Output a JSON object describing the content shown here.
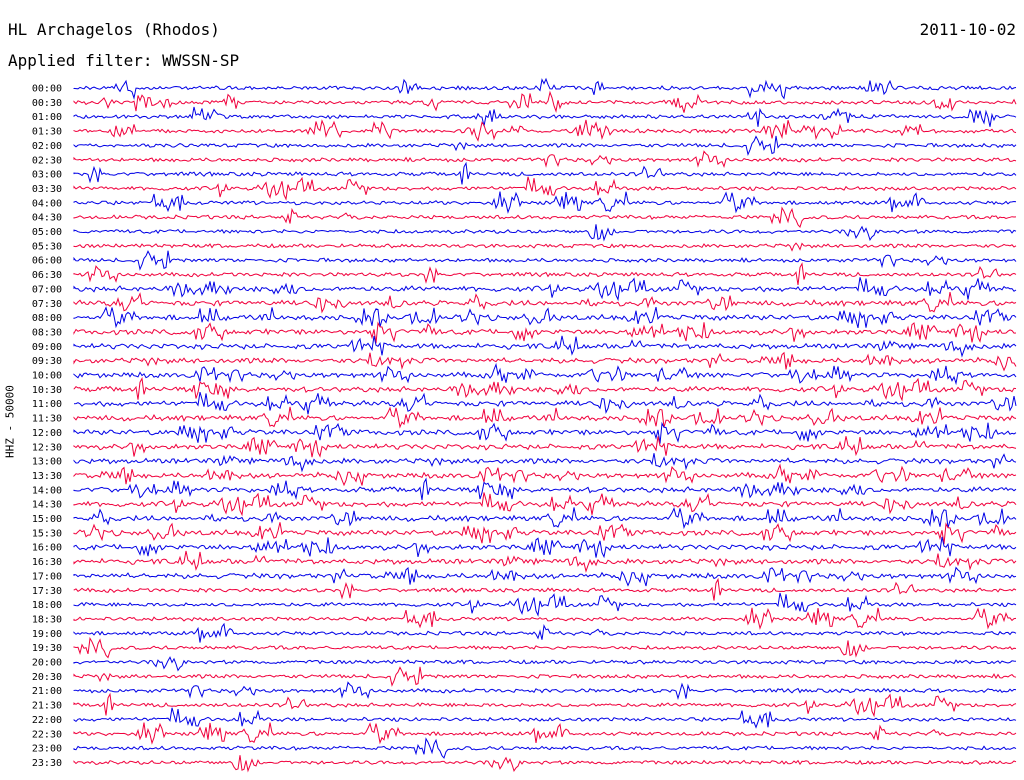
{
  "header": {
    "station": "HL Archagelos (Rhodos)",
    "date": "2011-10-02",
    "filter": "Applied filter: WWSSN-SP"
  },
  "chart_data": {
    "type": "line",
    "description_kind": "helicorder",
    "ylabel": "HHZ - 50000",
    "colors": [
      "#0000e6",
      "#f0003c"
    ],
    "rows": [
      {
        "label": "00:00"
      },
      {
        "label": "00:30"
      },
      {
        "label": "01:00"
      },
      {
        "label": "01:30"
      },
      {
        "label": "02:00"
      },
      {
        "label": "02:30"
      },
      {
        "label": "03:00"
      },
      {
        "label": "03:30"
      },
      {
        "label": "04:00"
      },
      {
        "label": "04:30"
      },
      {
        "label": "05:00"
      },
      {
        "label": "05:30"
      },
      {
        "label": "06:00"
      },
      {
        "label": "06:30"
      },
      {
        "label": "07:00"
      },
      {
        "label": "07:30"
      },
      {
        "label": "08:00"
      },
      {
        "label": "08:30"
      },
      {
        "label": "09:00"
      },
      {
        "label": "09:30"
      },
      {
        "label": "10:00"
      },
      {
        "label": "10:30"
      },
      {
        "label": "11:00"
      },
      {
        "label": "11:30"
      },
      {
        "label": "12:00"
      },
      {
        "label": "12:30"
      },
      {
        "label": "13:00"
      },
      {
        "label": "13:30"
      },
      {
        "label": "14:00"
      },
      {
        "label": "14:30"
      },
      {
        "label": "15:00"
      },
      {
        "label": "15:30"
      },
      {
        "label": "16:00"
      },
      {
        "label": "16:30"
      },
      {
        "label": "17:00"
      },
      {
        "label": "17:30"
      },
      {
        "label": "18:00"
      },
      {
        "label": "18:30"
      },
      {
        "label": "19:00"
      },
      {
        "label": "19:30"
      },
      {
        "label": "20:00"
      },
      {
        "label": "20:30"
      },
      {
        "label": "21:00"
      },
      {
        "label": "21:30"
      },
      {
        "label": "22:00"
      },
      {
        "label": "22:30"
      },
      {
        "label": "23:00"
      },
      {
        "label": "23:30"
      }
    ]
  }
}
